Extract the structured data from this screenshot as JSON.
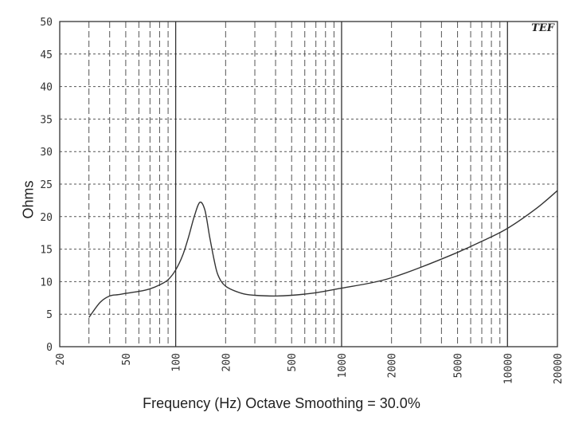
{
  "chart_data": {
    "type": "line",
    "title": "",
    "xlabel": "Frequency (Hz) Octave Smoothing = 30.0%",
    "ylabel": "Ohms",
    "xscale": "log",
    "xlim": [
      20,
      20000
    ],
    "ylim": [
      0,
      50
    ],
    "grid": true,
    "logo_text": "TEF",
    "x_tick_labels": [
      "20",
      "50",
      "100",
      "200",
      "500",
      "1000",
      "2000",
      "5000",
      "10000",
      "20000"
    ],
    "y_tick_labels": [
      "0",
      "5",
      "10",
      "15",
      "20",
      "25",
      "30",
      "35",
      "40",
      "45",
      "50"
    ],
    "series": [
      {
        "x": [
          30,
          35,
          40,
          45,
          50,
          60,
          70,
          80,
          90,
          100,
          110,
          120,
          130,
          140,
          150,
          160,
          170,
          180,
          200,
          250,
          300,
          400,
          500,
          700,
          1000,
          1500,
          2000,
          3000,
          5000,
          7000,
          10000,
          15000,
          20000
        ],
        "y": [
          4.5,
          6.8,
          7.8,
          8.0,
          8.2,
          8.5,
          8.9,
          9.5,
          10.3,
          11.8,
          14.0,
          17.0,
          20.2,
          22.2,
          21.0,
          17.0,
          13.5,
          11.0,
          9.3,
          8.2,
          7.9,
          7.8,
          7.9,
          8.3,
          9.0,
          9.8,
          10.6,
          12.2,
          14.5,
          16.2,
          18.2,
          21.3,
          24.0
        ]
      }
    ]
  }
}
